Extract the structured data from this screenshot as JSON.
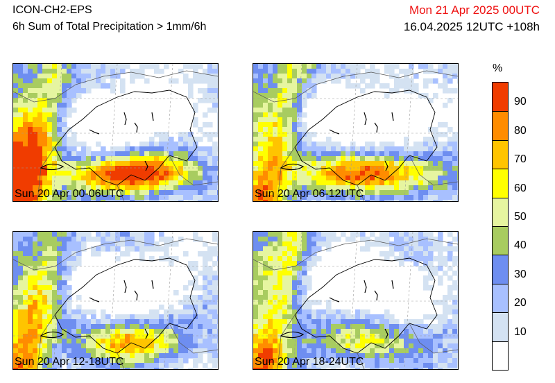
{
  "header": {
    "model": "ICON-CH2-EPS",
    "parameter": "6h Sum of Total Precipitation > 1mm/6h",
    "valid_time": "Mon 21 Apr 2025 00UTC",
    "run_info": "16.04.2025 12UTC +108h"
  },
  "panels": [
    {
      "label": "Sun 20 Apr 00-06UTC",
      "intensity": "very-high"
    },
    {
      "label": "Sun 20 Apr 06-12UTC",
      "intensity": "high"
    },
    {
      "label": "Sun 20 Apr 12-18UTC",
      "intensity": "medium"
    },
    {
      "label": "Sun 20 Apr 18-24UTC",
      "intensity": "low"
    }
  ],
  "legend": {
    "unit": "%",
    "ticks": [
      "90",
      "80",
      "70",
      "60",
      "50",
      "40",
      "30",
      "20",
      "10"
    ],
    "classes": [
      {
        "range": "90-100",
        "color": "#f03c00"
      },
      {
        "range": "80-90",
        "color": "#ff8c00"
      },
      {
        "range": "70-80",
        "color": "#ffc400"
      },
      {
        "range": "60-70",
        "color": "#ffff00"
      },
      {
        "range": "50-60",
        "color": "#e6f5a0"
      },
      {
        "range": "40-50",
        "color": "#a8cc60"
      },
      {
        "range": "30-40",
        "color": "#6e8ef0"
      },
      {
        "range": "20-30",
        "color": "#a8c0ff"
      },
      {
        "range": "10-20",
        "color": "#d4e2f2"
      },
      {
        "range": "0-10",
        "color": "#ffffff"
      }
    ]
  }
}
